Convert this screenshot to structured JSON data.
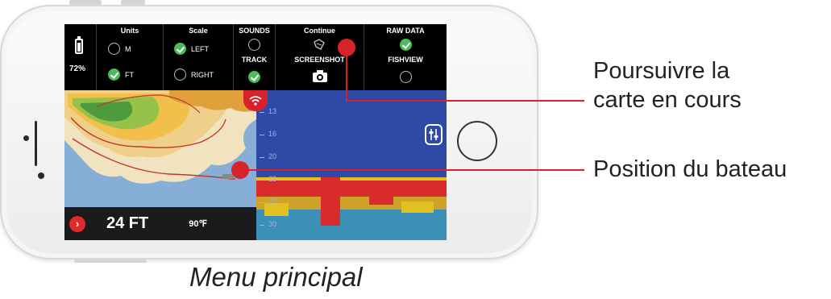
{
  "menu": {
    "battery_pct": "72%",
    "units": {
      "title": "Units",
      "options": [
        {
          "label": "M",
          "selected": false
        },
        {
          "label": "FT",
          "selected": true
        }
      ]
    },
    "scale": {
      "title": "Scale",
      "options": [
        {
          "label": "LEFT",
          "selected": true
        },
        {
          "label": "RIGHT",
          "selected": false
        }
      ]
    },
    "sounds": {
      "title": "SOUNDS",
      "selected": false
    },
    "track": {
      "title": "TRACK",
      "selected": true
    },
    "continue": {
      "title": "Continue"
    },
    "screenshot": {
      "title": "SCREENSHOT"
    },
    "raw_data": {
      "title": "RAW DATA",
      "selected": true
    },
    "fishview": {
      "title": "FISHVIEW",
      "selected": false
    }
  },
  "sonar": {
    "depth_ticks": [
      "13",
      "16",
      "20",
      "23",
      "27",
      "30"
    ]
  },
  "status": {
    "depth": "24 FT",
    "temperature": "90℉"
  },
  "callouts": {
    "continue_label_line1": "Poursuivre la",
    "continue_label_line2": "carte en cours",
    "boat_label": "Position du bateau",
    "accent_color": "#d8222a"
  },
  "caption": "Menu principal"
}
